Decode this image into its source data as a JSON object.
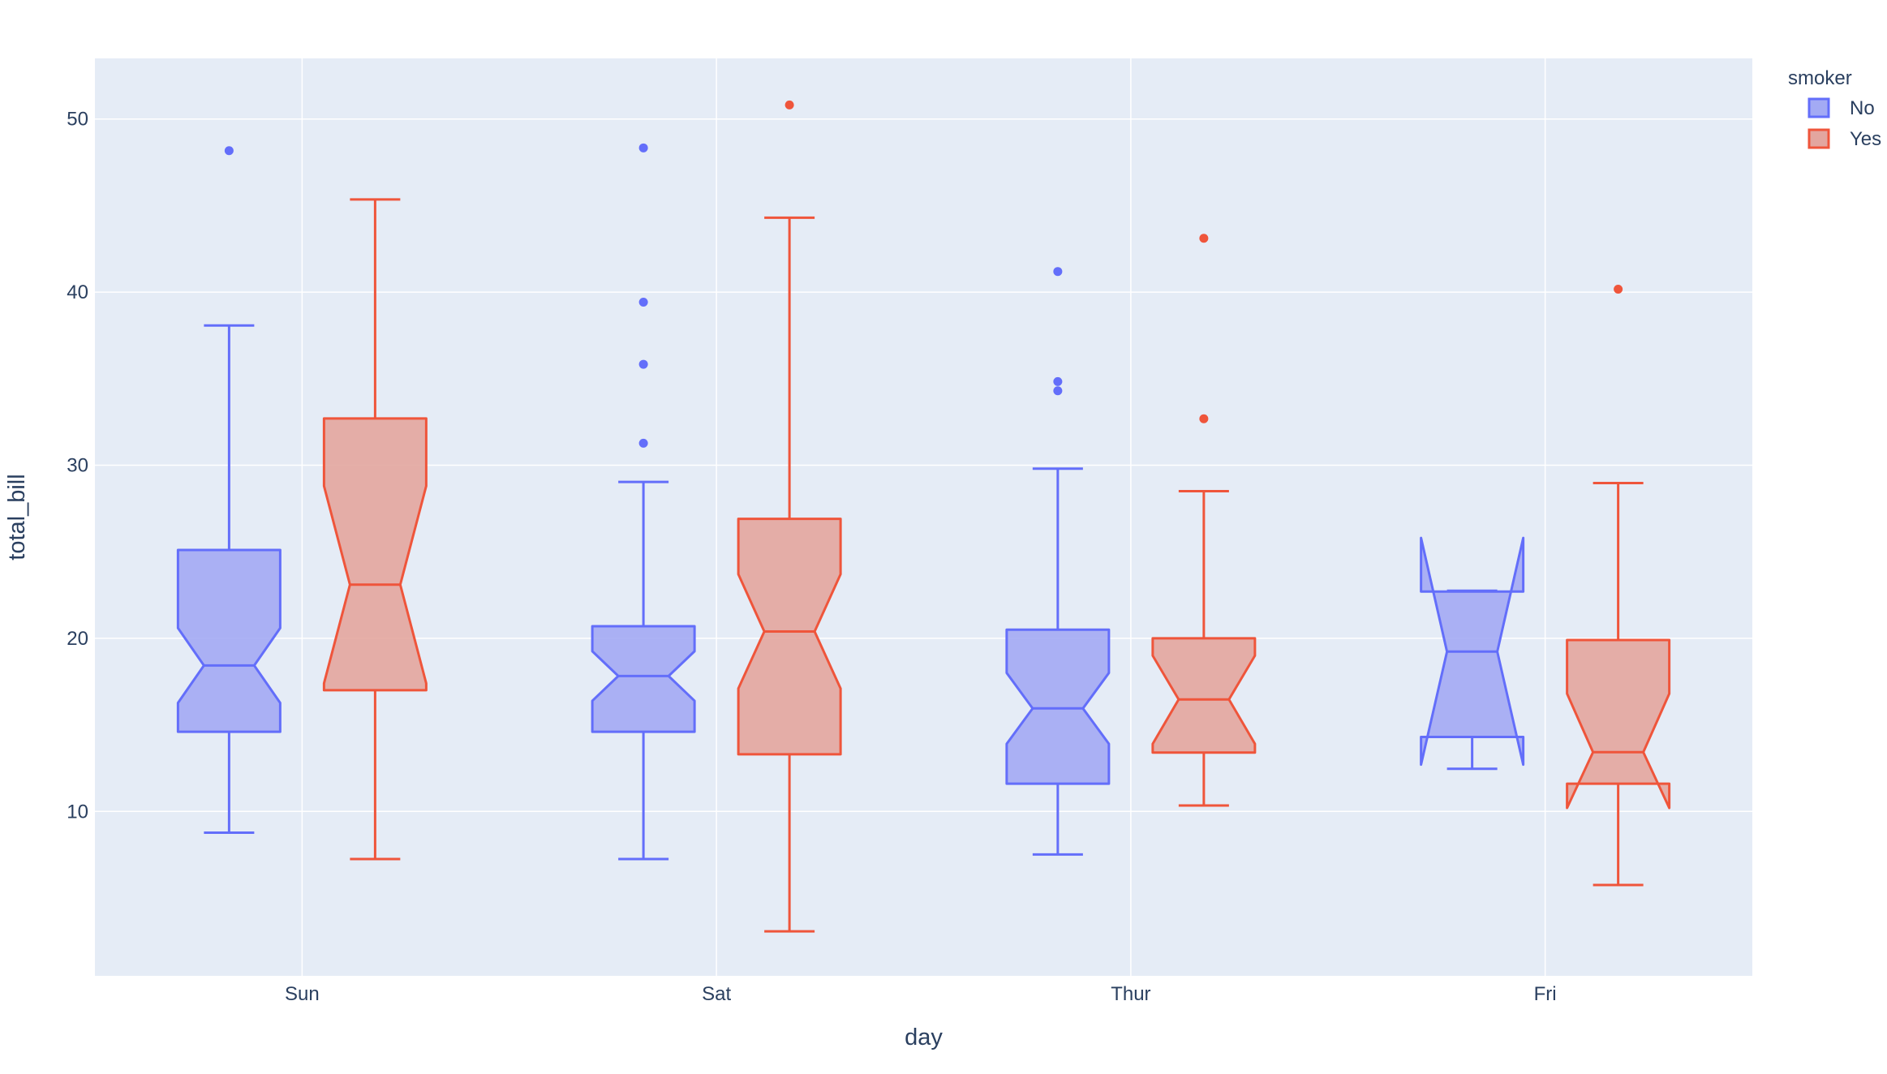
{
  "chart_data": {
    "type": "box",
    "notched": true,
    "xlabel": "day",
    "ylabel": "total_bill",
    "categories": [
      "Sun",
      "Sat",
      "Thur",
      "Fri"
    ],
    "ylim": [
      0.5,
      53.5
    ],
    "yticks": [
      10,
      20,
      30,
      40,
      50
    ],
    "grid": true,
    "background_color": "#e5ecf6",
    "legend": {
      "title": "smoker",
      "placement": "top-right"
    },
    "series": [
      {
        "name": "No",
        "color": "#636efa",
        "fill": "#a3aaf4",
        "boxes": [
          {
            "category": "Sun",
            "lower_whisker": 8.77,
            "q1": 14.6,
            "median": 18.43,
            "q3": 25.1,
            "upper_whisker": 38.07,
            "notch_low": 16.27,
            "notch_high": 20.59,
            "outliers": [
              48.17
            ]
          },
          {
            "category": "Sat",
            "lower_whisker": 7.25,
            "q1": 14.6,
            "median": 17.82,
            "q3": 20.7,
            "upper_whisker": 29.03,
            "notch_low": 16.39,
            "notch_high": 19.25,
            "outliers": [
              31.27,
              35.83,
              39.42,
              48.33
            ]
          },
          {
            "category": "Thur",
            "lower_whisker": 7.51,
            "q1": 11.6,
            "median": 15.95,
            "q3": 20.5,
            "upper_whisker": 29.8,
            "notch_low": 13.9,
            "notch_high": 18.0,
            "outliers": [
              34.3,
              34.83,
              41.19
            ]
          },
          {
            "category": "Fri",
            "lower_whisker": 12.46,
            "q1": 14.3,
            "median": 19.23,
            "q3": 22.7,
            "upper_whisker": 22.75,
            "notch_low": 12.7,
            "notch_high": 25.8,
            "outliers": []
          }
        ]
      },
      {
        "name": "Yes",
        "color": "#ef553b",
        "fill": "#e3a69f",
        "boxes": [
          {
            "category": "Sun",
            "lower_whisker": 7.25,
            "q1": 17.0,
            "median": 23.1,
            "q3": 32.7,
            "upper_whisker": 45.35,
            "notch_low": 17.4,
            "notch_high": 28.8,
            "outliers": []
          },
          {
            "category": "Sat",
            "lower_whisker": 3.07,
            "q1": 13.3,
            "median": 20.39,
            "q3": 26.9,
            "upper_whisker": 44.3,
            "notch_low": 17.1,
            "notch_high": 23.7,
            "outliers": [
              50.81
            ]
          },
          {
            "category": "Thur",
            "lower_whisker": 10.34,
            "q1": 13.4,
            "median": 16.47,
            "q3": 20.0,
            "upper_whisker": 28.5,
            "notch_low": 13.9,
            "notch_high": 19.0,
            "outliers": [
              32.68,
              43.11
            ]
          },
          {
            "category": "Fri",
            "lower_whisker": 5.75,
            "q1": 11.6,
            "median": 13.42,
            "q3": 19.9,
            "upper_whisker": 28.97,
            "notch_low": 10.2,
            "notch_high": 16.8,
            "outliers": [
              40.17
            ]
          }
        ]
      }
    ]
  }
}
